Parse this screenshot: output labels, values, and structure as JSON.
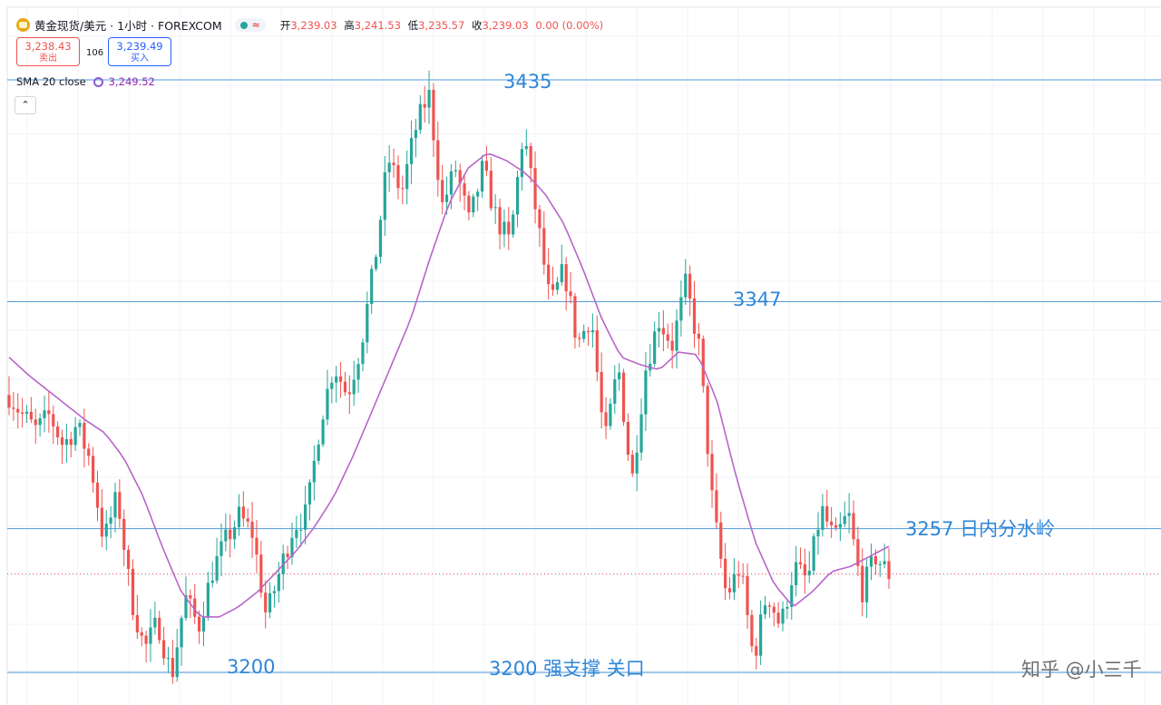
{
  "header": {
    "symbol": "黄金现货/美元 · 1小时 · FOREXCOM",
    "open_label": "开",
    "open": "3,239.03",
    "high_label": "高",
    "high": "3,241.53",
    "low_label": "低",
    "low": "3,235.57",
    "close_label": "收",
    "close": "3,239.03",
    "change": "0.00 (0.00%)"
  },
  "trade": {
    "sell_price": "3,238.43",
    "sell_label": "卖出",
    "spread": "106",
    "buy_price": "3,239.49",
    "buy_label": "买入"
  },
  "indicator": {
    "label": "SMA 20 close",
    "value": "3,249.52"
  },
  "annotations": {
    "a3435": "3435",
    "a3347": "3347",
    "a3257": "3257 日内分水岭",
    "a3200_left": "3200",
    "a3200_right": "3200 强支撑 关口"
  },
  "watermark": "知乎 @小三千",
  "footer_text": "",
  "colors": {
    "up": "#26a69a",
    "down": "#ef5350",
    "sma": "#b865c9",
    "hline": "#4f9bd9",
    "annotation": "#2f86d6"
  },
  "chart_data": {
    "type": "candlestick",
    "title": "黄金现货/美元 · 1小时 · FOREXCOM",
    "grid": true,
    "ylim": [
      3188,
      3446
    ],
    "horizontal_lines": [
      3435,
      3347,
      3257,
      3200
    ],
    "last_price": 3239.03,
    "price_path": [
      3310,
      3302,
      3296,
      3302,
      3290,
      3298,
      3284,
      3252,
      3270,
      3230,
      3209,
      3220,
      3198,
      3230,
      3218,
      3240,
      3252,
      3262,
      3255,
      3222,
      3240,
      3258,
      3263,
      3300,
      3322,
      3310,
      3330,
      3362,
      3404,
      3390,
      3415,
      3430,
      3385,
      3400,
      3378,
      3400,
      3380,
      3370,
      3415,
      3380,
      3345,
      3360,
      3330,
      3342,
      3290,
      3322,
      3275,
      3320,
      3340,
      3330,
      3354,
      3328,
      3265,
      3230,
      3242,
      3205,
      3232,
      3218,
      3242,
      3236,
      3265,
      3252,
      3263,
      3232,
      3246,
      3239
    ],
    "sma_path": [
      3325,
      3318,
      3312,
      3306,
      3300,
      3295,
      3285,
      3270,
      3250,
      3232,
      3222,
      3222,
      3226,
      3232,
      3240,
      3248,
      3258,
      3270,
      3286,
      3304,
      3322,
      3340,
      3364,
      3386,
      3400,
      3406,
      3403,
      3398,
      3390,
      3378,
      3360,
      3340,
      3325,
      3322,
      3320,
      3327,
      3326,
      3308,
      3278,
      3252,
      3235,
      3226,
      3232,
      3240,
      3242,
      3246,
      3250
    ],
    "sma_value": 3249.52
  }
}
